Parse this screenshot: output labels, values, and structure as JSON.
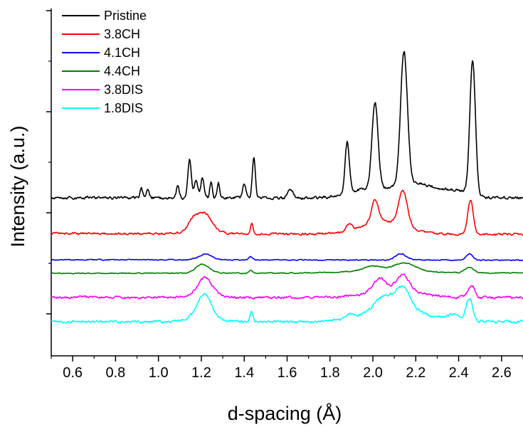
{
  "chart_data": {
    "type": "line",
    "title": "",
    "xlabel": "d-spacing (Å)",
    "ylabel": "Intensity (a.u.)",
    "xlim": [
      0.5,
      2.7
    ],
    "x_ticks": [
      "0.6",
      "0.8",
      "1.0",
      "1.2",
      "1.4",
      "1.6",
      "1.8",
      "2.0",
      "2.2",
      "2.4",
      "2.6"
    ],
    "y_ticks_labeled": false,
    "grid": false,
    "legend_position": "top-left",
    "peaks_x": [
      0.92,
      0.95,
      1.09,
      1.145,
      1.175,
      1.205,
      1.245,
      1.28,
      1.4,
      1.445,
      1.615,
      1.88,
      2.01,
      2.145,
      2.465
    ],
    "series": [
      {
        "name": "Pristine",
        "color": "#000000",
        "baseline": 278,
        "tilt": 0.0,
        "noise": 3.5,
        "peaks": [
          [
            0.92,
            12,
            0.006
          ],
          [
            0.95,
            14,
            0.006
          ],
          [
            1.09,
            18,
            0.006
          ],
          [
            1.145,
            55,
            0.008
          ],
          [
            1.175,
            25,
            0.008
          ],
          [
            1.205,
            30,
            0.007
          ],
          [
            1.245,
            22,
            0.006
          ],
          [
            1.28,
            22,
            0.006
          ],
          [
            1.4,
            20,
            0.007
          ],
          [
            1.445,
            58,
            0.007
          ],
          [
            1.615,
            12,
            0.012
          ],
          [
            1.88,
            72,
            0.01
          ],
          [
            2.01,
            120,
            0.014
          ],
          [
            2.145,
            188,
            0.016
          ],
          [
            2.465,
            188,
            0.013
          ]
        ],
        "humps": [
          [
            1.97,
            12,
            0.08
          ],
          [
            2.2,
            20,
            0.1
          ],
          [
            2.4,
            8,
            0.06
          ]
        ]
      },
      {
        "name": "3.8CH",
        "color": "#ff0000",
        "baseline": 328,
        "tilt": 0.01,
        "noise": 2.5,
        "peaks": [
          [
            1.16,
            12,
            0.02
          ],
          [
            1.215,
            18,
            0.03
          ],
          [
            1.435,
            16,
            0.006
          ],
          [
            1.89,
            10,
            0.012
          ],
          [
            2.01,
            32,
            0.016
          ],
          [
            2.14,
            50,
            0.02
          ],
          [
            2.455,
            48,
            0.013
          ]
        ],
        "humps": [
          [
            1.2,
            12,
            0.05
          ],
          [
            2.05,
            18,
            0.1
          ]
        ]
      },
      {
        "name": "4.1CH",
        "color": "#0000ff",
        "baseline": 365,
        "tilt": 0.004,
        "noise": 1.2,
        "peaks": [
          [
            1.22,
            8,
            0.03
          ],
          [
            1.43,
            4,
            0.008
          ],
          [
            2.13,
            9,
            0.025
          ],
          [
            2.45,
            9,
            0.015
          ]
        ],
        "humps": []
      },
      {
        "name": "4.4CH",
        "color": "#008000",
        "baseline": 384,
        "tilt": -0.004,
        "noise": 1.3,
        "peaks": [
          [
            1.205,
            13,
            0.03
          ],
          [
            1.43,
            4,
            0.008
          ],
          [
            2.0,
            6,
            0.04
          ],
          [
            2.15,
            11,
            0.05
          ],
          [
            2.45,
            8,
            0.02
          ]
        ],
        "humps": [
          [
            2.05,
            4,
            0.15
          ]
        ]
      },
      {
        "name": "3.8DIS",
        "color": "#ff00ff",
        "baseline": 418,
        "tilt": 0.0,
        "noise": 3.0,
        "peaks": [
          [
            1.22,
            22,
            0.03
          ],
          [
            2.03,
            18,
            0.03
          ],
          [
            2.14,
            22,
            0.03
          ],
          [
            2.46,
            18,
            0.015
          ]
        ],
        "humps": [
          [
            1.2,
            6,
            0.06
          ],
          [
            2.1,
            10,
            0.12
          ]
        ]
      },
      {
        "name": "1.8DIS",
        "color": "#00ffff",
        "baseline": 452,
        "tilt": 0.0,
        "noise": 3.0,
        "peaks": [
          [
            1.215,
            32,
            0.03
          ],
          [
            1.435,
            14,
            0.007
          ],
          [
            1.89,
            6,
            0.015
          ],
          [
            2.05,
            18,
            0.04
          ],
          [
            2.14,
            30,
            0.035
          ],
          [
            2.38,
            8,
            0.03
          ],
          [
            2.45,
            32,
            0.015
          ]
        ],
        "humps": [
          [
            1.2,
            8,
            0.06
          ],
          [
            2.1,
            18,
            0.14
          ]
        ]
      }
    ]
  }
}
